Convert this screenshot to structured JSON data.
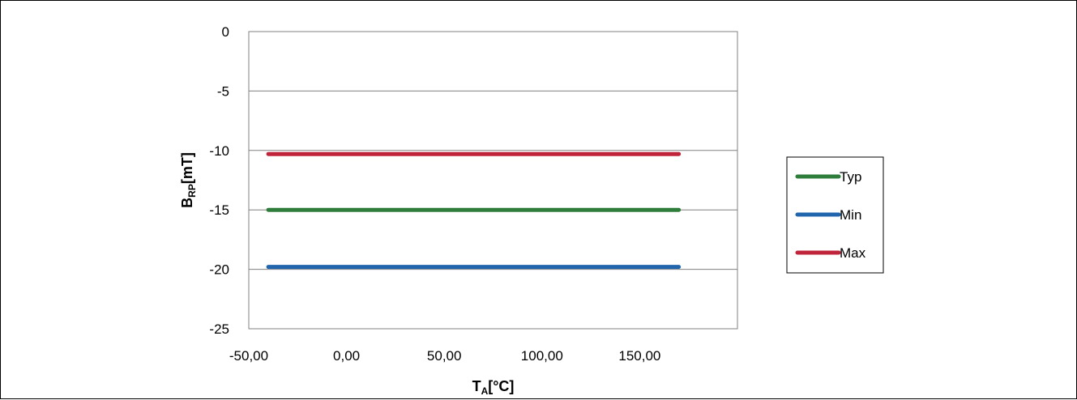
{
  "chart_data": {
    "type": "line",
    "xlabel": {
      "main": "T",
      "sub": "A",
      "rest": "[°C]"
    },
    "ylabel": {
      "main": "B",
      "sub": "RP",
      "rest": "[mT]"
    },
    "xlim": [
      -50,
      200
    ],
    "ylim": [
      -25,
      0
    ],
    "xticks": [
      "-50,00",
      "0,00",
      "50,00",
      "100,00",
      "150,00"
    ],
    "xtick_values": [
      -50,
      0,
      50,
      100,
      150
    ],
    "yticks": [
      "0",
      "-5",
      "-10",
      "-15",
      "-20",
      "-25"
    ],
    "ytick_values": [
      0,
      -5,
      -10,
      -15,
      -20,
      -25
    ],
    "grid": "horizontal",
    "legend": "right",
    "series": [
      {
        "name": "Typ",
        "color": "#2e7d3a",
        "x": [
          -40,
          170
        ],
        "y": [
          -15,
          -15
        ]
      },
      {
        "name": "Min",
        "color": "#2166ac",
        "x": [
          -40,
          170
        ],
        "y": [
          -19.8,
          -19.8
        ]
      },
      {
        "name": "Max",
        "color": "#c0243a",
        "x": [
          -40,
          170
        ],
        "y": [
          -10.3,
          -10.3
        ]
      }
    ]
  }
}
